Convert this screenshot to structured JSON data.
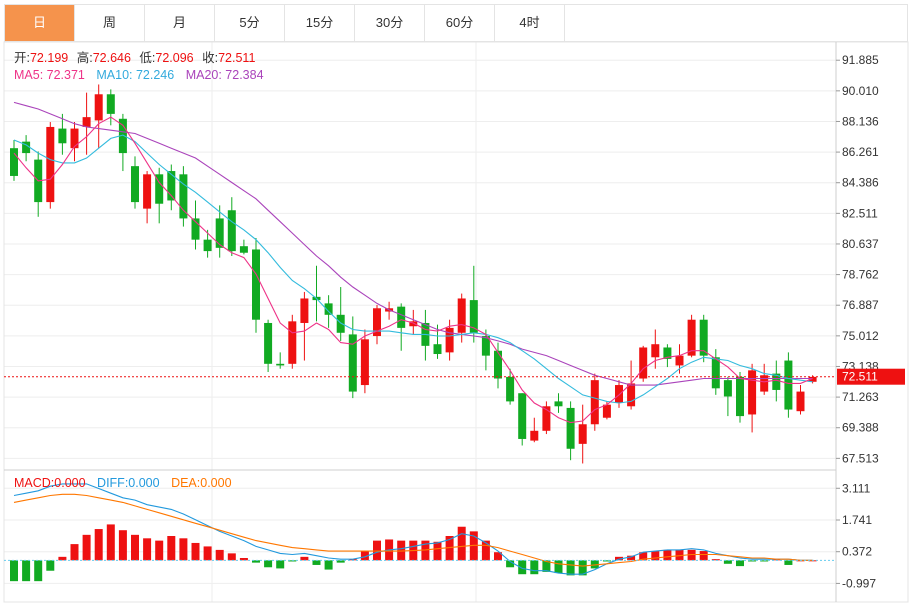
{
  "tabs": [
    {
      "label": "日",
      "active": true
    },
    {
      "label": "周"
    },
    {
      "label": "月"
    },
    {
      "label": "5分"
    },
    {
      "label": "15分"
    },
    {
      "label": "30分"
    },
    {
      "label": "60分"
    },
    {
      "label": "4时"
    }
  ],
  "ohlc_info": {
    "open_label": "开:",
    "open": "72.199",
    "high_label": "高:",
    "high": "72.646",
    "low_label": "低:",
    "low": "72.096",
    "close_label": "收:",
    "close": "72.511"
  },
  "ma_info": {
    "ma5": "MA5: 72.371",
    "ma10": "MA10: 72.246",
    "ma20": "MA20: 72.384"
  },
  "macd_info": {
    "macd": "MACD:0.000",
    "diff": "DIFF:0.000",
    "dea": "DEA:0.000"
  },
  "price_tag": "72.511",
  "colors": {
    "up": "#ee1111",
    "down": "#11aa22",
    "ma5": "#ee3388",
    "ma10": "#33bbdd",
    "ma20": "#aa44bb",
    "dea": "#ff7700",
    "tab_active": "#f5934c"
  },
  "chart_data": [
    {
      "type": "candlestick",
      "y_ticks": [
        "91.885",
        "90.010",
        "88.136",
        "86.261",
        "84.386",
        "82.511",
        "80.637",
        "78.762",
        "76.887",
        "75.012",
        "73.138",
        "71.263",
        "69.388",
        "67.513"
      ],
      "ylim": [
        66.8,
        93.0
      ],
      "last_close": 72.511,
      "candles": [
        [
          86.5,
          84.8,
          87.0,
          84.5
        ],
        [
          86.9,
          86.2,
          87.3,
          85.7
        ],
        [
          85.8,
          83.2,
          86.3,
          82.3
        ],
        [
          83.2,
          87.8,
          88.1,
          82.8
        ],
        [
          87.7,
          86.8,
          88.6,
          86.1
        ],
        [
          86.5,
          87.7,
          88.1,
          85.7
        ],
        [
          87.8,
          88.4,
          89.9,
          86.1
        ],
        [
          88.2,
          89.8,
          90.4,
          86.5
        ],
        [
          89.8,
          88.6,
          90.1,
          87.9
        ],
        [
          88.3,
          86.2,
          88.6,
          85.1
        ],
        [
          85.4,
          83.2,
          86.0,
          82.8
        ],
        [
          82.8,
          84.9,
          85.1,
          81.9
        ],
        [
          84.9,
          83.1,
          85.3,
          81.9
        ],
        [
          85.1,
          83.3,
          85.5,
          82.7
        ],
        [
          84.9,
          82.2,
          85.4,
          81.7
        ],
        [
          82.2,
          80.9,
          83.3,
          80.3
        ],
        [
          80.9,
          80.2,
          81.5,
          79.8
        ],
        [
          82.2,
          80.4,
          83.0,
          79.8
        ],
        [
          82.7,
          80.2,
          83.5,
          79.9
        ],
        [
          80.5,
          80.1,
          80.9,
          80.0
        ],
        [
          80.3,
          76.0,
          81.0,
          75.2
        ],
        [
          75.8,
          73.3,
          76.0,
          72.8
        ],
        [
          73.3,
          73.2,
          74.0,
          73.0
        ],
        [
          73.3,
          75.9,
          76.3,
          73.0
        ],
        [
          75.8,
          77.3,
          77.7,
          73.5
        ],
        [
          77.4,
          77.2,
          79.3,
          75.9
        ],
        [
          77.0,
          76.3,
          77.5,
          75.5
        ],
        [
          76.3,
          75.2,
          78.0,
          74.7
        ],
        [
          75.1,
          71.6,
          76.2,
          71.2
        ],
        [
          72.0,
          74.8,
          75.4,
          71.5
        ],
        [
          75.0,
          76.7,
          76.9,
          74.5
        ],
        [
          76.5,
          76.7,
          77.1,
          76.0
        ],
        [
          76.8,
          75.5,
          77.0,
          74.1
        ],
        [
          75.6,
          75.9,
          76.6,
          75.1
        ],
        [
          75.8,
          74.4,
          76.6,
          73.5
        ],
        [
          74.5,
          73.9,
          75.7,
          73.6
        ],
        [
          74.0,
          75.5,
          76.0,
          73.5
        ],
        [
          75.2,
          77.3,
          77.6,
          74.6
        ],
        [
          77.2,
          75.2,
          79.3,
          74.6
        ],
        [
          75.0,
          73.8,
          75.4,
          72.9
        ],
        [
          74.1,
          72.4,
          74.6,
          71.8
        ],
        [
          72.5,
          71.0,
          73.0,
          70.8
        ],
        [
          71.5,
          68.7,
          71.5,
          68.3
        ],
        [
          68.6,
          69.2,
          70.0,
          68.5
        ],
        [
          69.2,
          70.7,
          71.0,
          69.0
        ],
        [
          71.0,
          70.7,
          71.5,
          70.3
        ],
        [
          70.6,
          68.1,
          71.0,
          67.4
        ],
        [
          68.4,
          69.6,
          70.8,
          67.2
        ],
        [
          69.6,
          72.3,
          72.7,
          69.2
        ],
        [
          70.0,
          70.8,
          71.0,
          69.9
        ],
        [
          70.9,
          72.0,
          72.3,
          70.6
        ],
        [
          70.7,
          72.1,
          73.5,
          70.5
        ],
        [
          72.4,
          74.3,
          74.4,
          72.2
        ],
        [
          73.7,
          74.5,
          75.4,
          73.0
        ],
        [
          74.3,
          73.6,
          74.5,
          73.1
        ],
        [
          73.2,
          73.8,
          74.5,
          72.7
        ],
        [
          73.8,
          76.0,
          76.3,
          73.7
        ],
        [
          76.0,
          73.8,
          76.3,
          73.4
        ],
        [
          73.7,
          71.8,
          74.2,
          71.4
        ],
        [
          72.3,
          71.3,
          72.5,
          70.1
        ],
        [
          72.5,
          70.1,
          72.8,
          69.7
        ],
        [
          70.2,
          72.9,
          73.3,
          69.1
        ],
        [
          71.6,
          72.6,
          73.3,
          71.4
        ],
        [
          72.7,
          71.7,
          73.5,
          71.0
        ],
        [
          73.5,
          70.5,
          74.0,
          70.0
        ],
        [
          70.4,
          71.6,
          72.0,
          70.2
        ],
        [
          72.2,
          72.5,
          72.6,
          72.1
        ]
      ],
      "ma5": [
        86.2,
        85.3,
        84.5,
        84.6,
        85.5,
        86.6,
        87.2,
        88.0,
        88.4,
        87.9,
        86.8,
        85.6,
        84.4,
        83.6,
        82.7,
        82.0,
        81.3,
        80.6,
        80.1,
        79.8,
        78.8,
        77.3,
        75.8,
        75.2,
        75.3,
        75.8,
        75.4,
        74.6,
        74.5,
        75.0,
        75.3,
        75.6,
        76.0,
        75.8,
        75.4,
        75.3,
        75.6,
        75.7,
        75.5,
        75.1,
        74.0,
        72.9,
        71.7,
        70.9,
        70.5,
        70.0,
        69.7,
        69.8,
        70.5,
        70.8,
        71.4,
        72.1,
        73.0,
        73.5,
        73.7,
        73.8,
        74.1,
        74.1,
        73.6,
        73.1,
        72.4,
        72.3,
        72.2,
        72.3,
        72.1,
        72.1,
        72.4
      ],
      "ma10": [
        87.0,
        86.7,
        86.2,
        85.8,
        85.6,
        85.6,
        85.9,
        86.5,
        87.1,
        87.3,
        86.9,
        86.2,
        85.5,
        84.9,
        84.3,
        83.8,
        83.2,
        82.6,
        82.0,
        81.5,
        80.9,
        80.1,
        79.2,
        78.4,
        77.9,
        77.3,
        76.5,
        75.8,
        75.4,
        75.3,
        75.3,
        75.3,
        75.2,
        75.1,
        75.1,
        75.0,
        75.0,
        75.1,
        75.2,
        75.1,
        74.9,
        74.6,
        74.1,
        73.6,
        73.0,
        72.4,
        71.9,
        71.4,
        71.2,
        71.0,
        70.9,
        71.0,
        71.4,
        71.9,
        72.4,
        73.0,
        73.4,
        73.7,
        73.6,
        73.5,
        73.2,
        73.0,
        72.7,
        72.6,
        72.4,
        72.3,
        72.2
      ],
      "ma20": [
        89.3,
        89.1,
        88.9,
        88.6,
        88.3,
        88.0,
        87.8,
        87.7,
        87.6,
        87.5,
        87.4,
        87.1,
        86.8,
        86.5,
        86.2,
        85.9,
        85.4,
        84.9,
        84.4,
        83.9,
        83.4,
        82.7,
        82.0,
        81.3,
        80.6,
        79.9,
        79.3,
        78.6,
        78.0,
        77.5,
        77.0,
        76.6,
        76.3,
        76.0,
        75.7,
        75.4,
        75.2,
        75.1,
        75.0,
        74.9,
        74.7,
        74.5,
        74.2,
        74.0,
        73.8,
        73.5,
        73.2,
        72.9,
        72.6,
        72.4,
        72.2,
        72.0,
        72.0,
        72.0,
        72.1,
        72.2,
        72.3,
        72.4,
        72.4,
        72.4,
        72.4,
        72.4,
        72.4,
        72.4,
        72.4,
        72.4,
        72.4
      ]
    },
    {
      "type": "macd",
      "y_ticks": [
        "3.111",
        "1.741",
        "0.372",
        "-0.997"
      ],
      "ylim": [
        -1.8,
        3.9
      ],
      "hist": [
        -0.9,
        -0.9,
        -0.9,
        -0.45,
        0.15,
        0.7,
        1.1,
        1.35,
        1.55,
        1.3,
        1.1,
        0.95,
        0.85,
        1.05,
        0.95,
        0.75,
        0.6,
        0.45,
        0.3,
        0.1,
        -0.1,
        -0.3,
        -0.35,
        -0.05,
        0.15,
        -0.2,
        -0.4,
        -0.1,
        0.05,
        0.4,
        0.85,
        0.9,
        0.85,
        0.85,
        0.85,
        0.8,
        1.05,
        1.45,
        1.25,
        0.85,
        0.35,
        -0.3,
        -0.6,
        -0.6,
        -0.5,
        -0.55,
        -0.65,
        -0.65,
        -0.35,
        -0.05,
        0.15,
        0.2,
        0.35,
        0.4,
        0.45,
        0.45,
        0.45,
        0.4,
        0.05,
        -0.15,
        -0.25,
        -0.05,
        -0.05,
        0.05,
        -0.2,
        0.0,
        0.0
      ],
      "diff": [
        2.8,
        2.9,
        3.0,
        3.2,
        3.3,
        3.3,
        3.3,
        3.1,
        2.9,
        2.7,
        2.6,
        2.4,
        2.3,
        2.2,
        2.0,
        1.75,
        1.5,
        1.25,
        1.05,
        0.85,
        0.6,
        0.45,
        0.3,
        0.25,
        0.3,
        0.2,
        0.1,
        0.05,
        0.05,
        0.15,
        0.35,
        0.45,
        0.5,
        0.6,
        0.7,
        0.75,
        0.9,
        1.15,
        1.05,
        0.75,
        0.4,
        -0.05,
        -0.35,
        -0.45,
        -0.45,
        -0.55,
        -0.6,
        -0.6,
        -0.4,
        -0.15,
        0.05,
        0.15,
        0.35,
        0.4,
        0.45,
        0.45,
        0.5,
        0.45,
        0.3,
        0.2,
        0.1,
        0.05,
        0.05,
        0.05,
        0.05,
        0.0,
        0.0
      ],
      "dea": [
        2.5,
        2.6,
        2.7,
        2.8,
        2.85,
        2.85,
        2.8,
        2.7,
        2.6,
        2.5,
        2.35,
        2.2,
        2.05,
        1.9,
        1.75,
        1.6,
        1.45,
        1.3,
        1.15,
        1.0,
        0.85,
        0.75,
        0.65,
        0.55,
        0.5,
        0.45,
        0.4,
        0.4,
        0.4,
        0.4,
        0.4,
        0.4,
        0.4,
        0.42,
        0.45,
        0.5,
        0.55,
        0.6,
        0.65,
        0.65,
        0.55,
        0.4,
        0.25,
        0.1,
        -0.05,
        -0.15,
        -0.2,
        -0.25,
        -0.2,
        -0.15,
        -0.1,
        -0.05,
        0.05,
        0.1,
        0.15,
        0.2,
        0.25,
        0.25,
        0.25,
        0.2,
        0.15,
        0.1,
        0.1,
        0.05,
        0.05,
        0.0,
        0.0
      ]
    }
  ]
}
